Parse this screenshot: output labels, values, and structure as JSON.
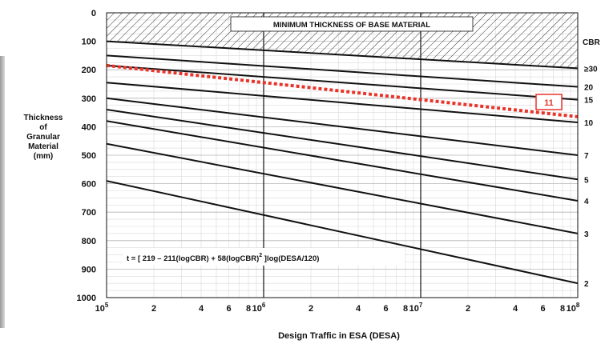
{
  "chart_data": {
    "type": "line",
    "title": "",
    "banner": "MINIMUM THICKNESS OF BASE MATERIAL",
    "ylabel": [
      "Thickness",
      "of",
      "Granular",
      "Material",
      "(mm)"
    ],
    "xlabel": "Design Traffic in ESA (DESA)",
    "y_axis": {
      "min": 0,
      "max": 1000,
      "reversed": true,
      "ticks": [
        "0",
        "100",
        "200",
        "300",
        "400",
        "500",
        "600",
        "700",
        "800",
        "900",
        "1000"
      ]
    },
    "x_axis": {
      "scale": "log",
      "min": 100000,
      "max": 100000000,
      "major_ticks": [
        {
          "base": "10",
          "exp": "5"
        },
        {
          "base": "10",
          "exp": "6"
        },
        {
          "base": "10",
          "exp": "7"
        },
        {
          "base": "10",
          "exp": "8"
        }
      ],
      "minor_tick_labels": [
        "2",
        "4",
        "6",
        "8"
      ]
    },
    "cbr_header": "CBR",
    "formula": {
      "pre": "t = [ 219 – 211(logCBR) + 58(logCBR)",
      "sup": "2",
      "post": " ]log(DESA/120)"
    },
    "series": [
      {
        "name": "≥30",
        "x": [
          100000,
          100000000
        ],
        "y": [
          100,
          195
        ]
      },
      {
        "name": "20",
        "x": [
          100000,
          100000000
        ],
        "y": [
          150,
          260
        ]
      },
      {
        "name": "15",
        "x": [
          100000,
          100000000
        ],
        "y": [
          185,
          305
        ]
      },
      {
        "name": "10",
        "x": [
          100000,
          100000000
        ],
        "y": [
          245,
          385
        ]
      },
      {
        "name": "7",
        "x": [
          100000,
          100000000
        ],
        "y": [
          300,
          500
        ]
      },
      {
        "name": "5",
        "x": [
          100000,
          100000000
        ],
        "y": [
          340,
          585
        ]
      },
      {
        "name": "4",
        "x": [
          100000,
          100000000
        ],
        "y": [
          380,
          660
        ]
      },
      {
        "name": "3",
        "x": [
          100000,
          100000000
        ],
        "y": [
          460,
          775
        ]
      },
      {
        "name": "2",
        "x": [
          100000,
          100000000
        ],
        "y": [
          590,
          950
        ]
      }
    ],
    "highlight": {
      "name": "11",
      "x": [
        100000,
        100000000
      ],
      "y": [
        185,
        365
      ],
      "color": "#e8342a"
    },
    "grid": true,
    "hatch_region_y": [
      0,
      100
    ],
    "colors": {
      "line": "#111111",
      "grid": "#d9d9d9",
      "highlight": "#e8342a"
    }
  }
}
